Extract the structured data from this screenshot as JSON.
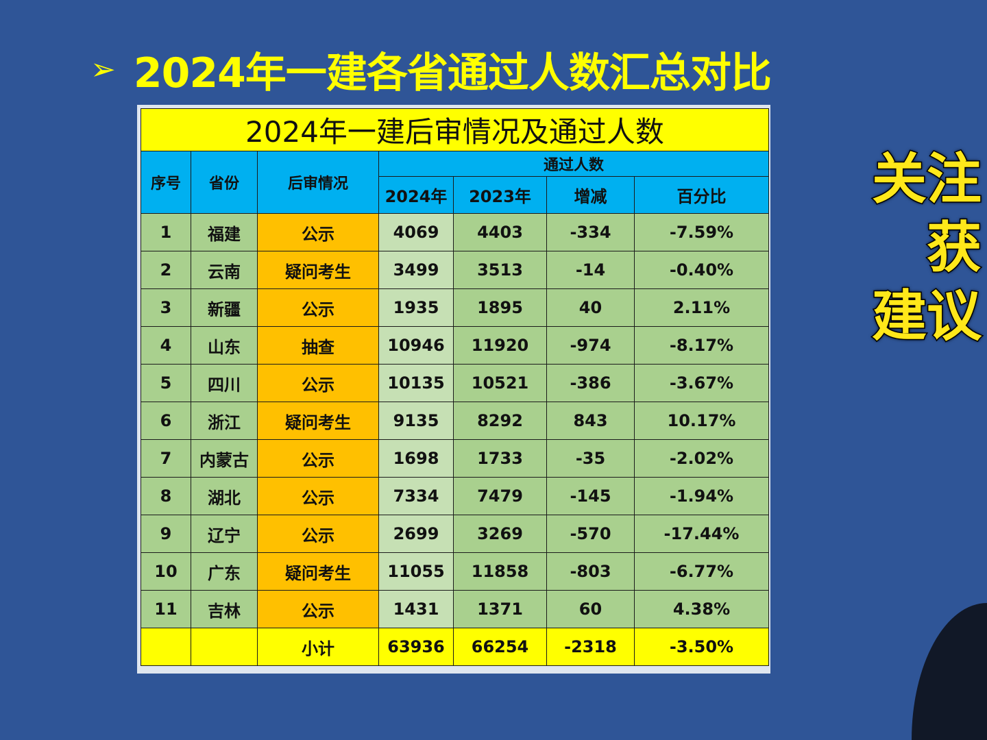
{
  "slide": {
    "heading_bullet": "➢",
    "heading": "2024年一建各省通过人数汇总对比",
    "side_text": [
      "关注",
      "获",
      "建议"
    ]
  },
  "table": {
    "title": "2024年一建后审情况及通过人数",
    "headers": {
      "index": "序号",
      "province": "省份",
      "review": "后审情况",
      "group": "通过人数",
      "y2024": "2024年",
      "y2023": "2023年",
      "change": "增减",
      "percent": "百分比"
    },
    "rows": [
      {
        "index": "1",
        "province": "福建",
        "review": "公示",
        "y2024": "4069",
        "y2023": "4403",
        "change": "-334",
        "percent": "-7.59%"
      },
      {
        "index": "2",
        "province": "云南",
        "review": "疑问考生",
        "y2024": "3499",
        "y2023": "3513",
        "change": "-14",
        "percent": "-0.40%"
      },
      {
        "index": "3",
        "province": "新疆",
        "review": "公示",
        "y2024": "1935",
        "y2023": "1895",
        "change": "40",
        "percent": "2.11%"
      },
      {
        "index": "4",
        "province": "山东",
        "review": "抽查",
        "y2024": "10946",
        "y2023": "11920",
        "change": "-974",
        "percent": "-8.17%"
      },
      {
        "index": "5",
        "province": "四川",
        "review": "公示",
        "y2024": "10135",
        "y2023": "10521",
        "change": "-386",
        "percent": "-3.67%"
      },
      {
        "index": "6",
        "province": "浙江",
        "review": "疑问考生",
        "y2024": "9135",
        "y2023": "8292",
        "change": "843",
        "percent": "10.17%"
      },
      {
        "index": "7",
        "province": "内蒙古",
        "review": "公示",
        "y2024": "1698",
        "y2023": "1733",
        "change": "-35",
        "percent": "-2.02%"
      },
      {
        "index": "8",
        "province": "湖北",
        "review": "公示",
        "y2024": "7334",
        "y2023": "7479",
        "change": "-145",
        "percent": "-1.94%"
      },
      {
        "index": "9",
        "province": "辽宁",
        "review": "公示",
        "y2024": "2699",
        "y2023": "3269",
        "change": "-570",
        "percent": "-17.44%"
      },
      {
        "index": "10",
        "province": "广东",
        "review": "疑问考生",
        "y2024": "11055",
        "y2023": "11858",
        "change": "-803",
        "percent": "-6.77%"
      },
      {
        "index": "11",
        "province": "吉林",
        "review": "公示",
        "y2024": "1431",
        "y2023": "1371",
        "change": "60",
        "percent": "4.38%"
      }
    ],
    "total": {
      "label": "小计",
      "y2024": "63936",
      "y2023": "66254",
      "change": "-2318",
      "percent": "-3.50%"
    }
  },
  "colors": {
    "background": "#2f5597",
    "heading": "#ffff00",
    "title_row": "#ffff00",
    "header": "#00b0f0",
    "review_cell": "#ffc000",
    "data_cell": "#a9d08e"
  }
}
